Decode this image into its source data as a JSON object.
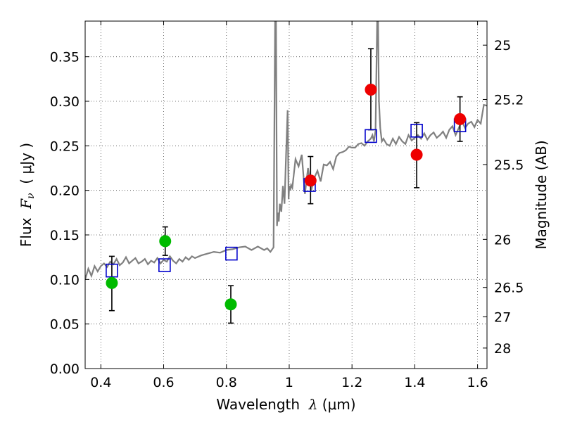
{
  "chart_data": {
    "type": "scatter",
    "xlabel": {
      "prefix": "Wavelength  ",
      "math": "λ",
      "suffix": " (μm)"
    },
    "ylabel": {
      "prefix": "Flux  ",
      "math": "F",
      "sub": "ν",
      "suffix": "  ( μJy )"
    },
    "y2label": "Magnitude (AB)",
    "xlim": [
      0.35,
      1.63
    ],
    "ylim": [
      0.0,
      0.39
    ],
    "xticks": [
      {
        "value": 0.4,
        "label": "0.4"
      },
      {
        "value": 0.6,
        "label": "0.6"
      },
      {
        "value": 0.8,
        "label": "0.8"
      },
      {
        "value": 1.0,
        "label": "1"
      },
      {
        "value": 1.2,
        "label": "1.2"
      },
      {
        "value": 1.4,
        "label": "1.4"
      },
      {
        "value": 1.6,
        "label": "1.6"
      }
    ],
    "yticks": [
      {
        "value": 0.0,
        "label": "0.00"
      },
      {
        "value": 0.05,
        "label": "0.05"
      },
      {
        "value": 0.1,
        "label": "0.10"
      },
      {
        "value": 0.15,
        "label": "0.15"
      },
      {
        "value": 0.2,
        "label": "0.20"
      },
      {
        "value": 0.25,
        "label": "0.25"
      },
      {
        "value": 0.3,
        "label": "0.30"
      },
      {
        "value": 0.35,
        "label": "0.35"
      }
    ],
    "y2ticks": [
      {
        "flux": 0.363,
        "label": "25"
      },
      {
        "flux": 0.302,
        "label": "25.2"
      },
      {
        "flux": 0.229,
        "label": "25.5"
      },
      {
        "flux": 0.145,
        "label": "26"
      },
      {
        "flux": 0.091,
        "label": "26.5"
      },
      {
        "flux": 0.058,
        "label": "27"
      },
      {
        "flux": 0.023,
        "label": "28"
      }
    ],
    "grid": true,
    "series": [
      {
        "kind": "line",
        "color": "#808080",
        "x": [
          0.35,
          0.36,
          0.37,
          0.38,
          0.39,
          0.4,
          0.41,
          0.42,
          0.43,
          0.44,
          0.45,
          0.46,
          0.47,
          0.48,
          0.49,
          0.5,
          0.51,
          0.52,
          0.53,
          0.54,
          0.55,
          0.56,
          0.57,
          0.58,
          0.59,
          0.6,
          0.61,
          0.62,
          0.63,
          0.64,
          0.65,
          0.66,
          0.67,
          0.68,
          0.69,
          0.7,
          0.72,
          0.74,
          0.76,
          0.78,
          0.8,
          0.82,
          0.84,
          0.86,
          0.88,
          0.9,
          0.92,
          0.93,
          0.94,
          0.95,
          0.955,
          0.958,
          0.961,
          0.964,
          0.967,
          0.97,
          0.975,
          0.98,
          0.985,
          0.99,
          0.995,
          0.998,
          1.0,
          1.003,
          1.006,
          1.01,
          1.02,
          1.03,
          1.04,
          1.05,
          1.06,
          1.07,
          1.08,
          1.09,
          1.1,
          1.11,
          1.12,
          1.13,
          1.14,
          1.15,
          1.16,
          1.17,
          1.18,
          1.19,
          1.2,
          1.21,
          1.22,
          1.23,
          1.24,
          1.25,
          1.26,
          1.265,
          1.27,
          1.275,
          1.28,
          1.283,
          1.286,
          1.29,
          1.295,
          1.3,
          1.31,
          1.32,
          1.33,
          1.34,
          1.35,
          1.36,
          1.37,
          1.38,
          1.39,
          1.4,
          1.41,
          1.42,
          1.43,
          1.44,
          1.45,
          1.46,
          1.47,
          1.48,
          1.49,
          1.5,
          1.51,
          1.52,
          1.53,
          1.54,
          1.55,
          1.56,
          1.57,
          1.58,
          1.59,
          1.6,
          1.61,
          1.62,
          1.63
        ],
        "y": [
          0.1,
          0.112,
          0.104,
          0.115,
          0.109,
          0.115,
          0.118,
          0.114,
          0.12,
          0.117,
          0.123,
          0.116,
          0.119,
          0.125,
          0.118,
          0.121,
          0.124,
          0.118,
          0.12,
          0.123,
          0.117,
          0.121,
          0.119,
          0.124,
          0.118,
          0.122,
          0.12,
          0.126,
          0.121,
          0.118,
          0.123,
          0.12,
          0.125,
          0.122,
          0.126,
          0.124,
          0.127,
          0.129,
          0.131,
          0.13,
          0.133,
          0.134,
          0.136,
          0.137,
          0.133,
          0.137,
          0.133,
          0.135,
          0.131,
          0.136,
          0.39,
          0.39,
          0.16,
          0.175,
          0.165,
          0.185,
          0.176,
          0.205,
          0.185,
          0.24,
          0.29,
          0.19,
          0.205,
          0.2,
          0.206,
          0.203,
          0.235,
          0.227,
          0.24,
          0.196,
          0.225,
          0.2,
          0.214,
          0.222,
          0.21,
          0.229,
          0.228,
          0.232,
          0.224,
          0.238,
          0.242,
          0.243,
          0.245,
          0.249,
          0.248,
          0.248,
          0.252,
          0.253,
          0.25,
          0.255,
          0.258,
          0.262,
          0.255,
          0.267,
          0.39,
          0.39,
          0.3,
          0.27,
          0.255,
          0.258,
          0.252,
          0.25,
          0.258,
          0.252,
          0.26,
          0.255,
          0.252,
          0.262,
          0.256,
          0.259,
          0.262,
          0.258,
          0.264,
          0.257,
          0.262,
          0.265,
          0.259,
          0.262,
          0.266,
          0.259,
          0.268,
          0.272,
          0.262,
          0.27,
          0.278,
          0.27,
          0.275,
          0.277,
          0.271,
          0.279,
          0.275,
          0.296,
          0.295
        ]
      },
      {
        "kind": "squares",
        "color": "#0000cc",
        "x": [
          0.435,
          0.603,
          0.816,
          1.065,
          1.26,
          1.406,
          1.544
        ],
        "y": [
          0.11,
          0.116,
          0.129,
          0.206,
          0.261,
          0.267,
          0.273
        ]
      },
      {
        "kind": "points",
        "color": "#00bb00",
        "x": [
          0.435,
          0.605,
          0.814
        ],
        "y": [
          0.096,
          0.143,
          0.072
        ],
        "yerr_low": [
          0.065,
          0.127,
          0.051
        ],
        "yerr_high": [
          0.126,
          0.159,
          0.093
        ]
      },
      {
        "kind": "points",
        "color": "#ee0000",
        "x": [
          1.068,
          1.26,
          1.406,
          1.544
        ],
        "y": [
          0.211,
          0.313,
          0.24,
          0.28
        ],
        "yerr_low": [
          0.185,
          0.268,
          0.203,
          0.255
        ],
        "yerr_high": [
          0.238,
          0.359,
          0.276,
          0.305
        ]
      }
    ]
  }
}
